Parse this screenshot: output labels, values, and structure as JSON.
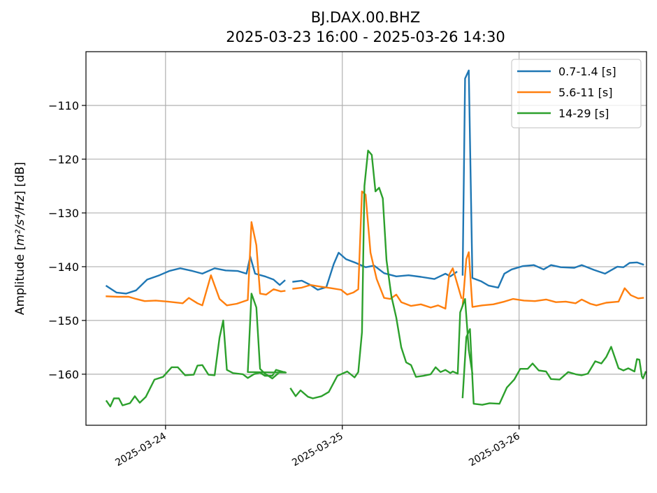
{
  "chart_data": {
    "type": "line",
    "title": "BJ.DAX.00.BHZ",
    "subtitle": "2025-03-23 16:00 - 2025-03-26 14:30",
    "ylabel_prefix": "Amplitude [",
    "ylabel_math": "m²/s⁴/Hz",
    "ylabel_suffix": "] [dB]",
    "xlabel": "",
    "xlim": [
      "2025-03-23 13:12",
      "2025-03-26 17:18"
    ],
    "ylim": [
      -169.5,
      -100
    ],
    "yticks": [
      -110,
      -120,
      -130,
      -140,
      -150,
      -160
    ],
    "yticklabels": [
      "−110",
      "−120",
      "−130",
      "−140",
      "−150",
      "−160"
    ],
    "xticks": [
      "2025-03-24 00:00",
      "2025-03-25 00:00",
      "2025-03-26 00:00"
    ],
    "xticklabels": [
      "2025-03-24",
      "2025-03-25",
      "2025-03-26"
    ],
    "grid": true,
    "legend_position": "upper right",
    "series": [
      {
        "name": "0.7-1.4 [s]",
        "color": "#1f77b4",
        "points": [
          [
            "2025-03-23 16:00",
            -143.6
          ],
          [
            "2025-03-23 17:20",
            -144.8
          ],
          [
            "2025-03-23 18:40",
            -145.0
          ],
          [
            "2025-03-23 20:00",
            -144.4
          ],
          [
            "2025-03-23 21:30",
            -142.4
          ],
          [
            "2025-03-23 23:10",
            -141.6
          ],
          [
            "2025-03-24 00:30",
            -140.8
          ],
          [
            "2025-03-24 02:00",
            -140.3
          ],
          [
            "2025-03-24 03:40",
            -140.8
          ],
          [
            "2025-03-24 05:00",
            -141.3
          ],
          [
            "2025-03-24 06:40",
            -140.3
          ],
          [
            "2025-03-24 08:10",
            -140.7
          ],
          [
            "2025-03-24 09:50",
            -140.8
          ],
          [
            "2025-03-24 11:00",
            -141.3
          ],
          [
            "2025-03-24 11:30",
            -138.1
          ],
          [
            "2025-03-24 12:10",
            -141.3
          ],
          [
            "2025-03-24 13:30",
            -141.8
          ],
          [
            "2025-03-24 14:40",
            -142.4
          ],
          [
            "2025-03-24 15:30",
            -143.4
          ],
          [
            "2025-03-24 16:10",
            -142.6
          ],
          null,
          [
            "2025-03-24 17:20",
            -142.8
          ],
          [
            "2025-03-24 18:30",
            -142.6
          ],
          [
            "2025-03-24 19:40",
            -143.4
          ],
          [
            "2025-03-24 20:40",
            -144.3
          ],
          [
            "2025-03-24 21:50",
            -143.8
          ],
          [
            "2025-03-24 22:50",
            -139.5
          ],
          [
            "2025-03-24 23:30",
            -137.4
          ],
          [
            "2025-03-25 00:30",
            -138.6
          ],
          [
            "2025-03-25 01:50",
            -139.3
          ],
          [
            "2025-03-25 03:10",
            -140.1
          ],
          [
            "2025-03-25 04:20",
            -139.8
          ],
          [
            "2025-03-25 05:40",
            -141.2
          ],
          [
            "2025-03-25 07:20",
            -141.8
          ],
          [
            "2025-03-25 09:00",
            -141.6
          ],
          [
            "2025-03-25 10:40",
            -141.9
          ],
          [
            "2025-03-25 12:30",
            -142.3
          ],
          [
            "2025-03-25 14:00",
            -141.3
          ],
          [
            "2025-03-25 14:40",
            -141.8
          ],
          [
            "2025-03-25 15:30",
            -141.0
          ],
          null,
          [
            "2025-03-25 16:20",
            -141.5
          ],
          [
            "2025-03-25 16:40",
            -105.0
          ],
          [
            "2025-03-25 17:10",
            -103.5
          ],
          [
            "2025-03-25 17:40",
            -142.1
          ],
          [
            "2025-03-25 18:50",
            -142.7
          ],
          [
            "2025-03-25 19:50",
            -143.5
          ],
          [
            "2025-03-25 21:10",
            -143.9
          ],
          [
            "2025-03-25 22:00",
            -141.3
          ],
          [
            "2025-03-25 23:00",
            -140.5
          ],
          [
            "2025-03-26 00:30",
            -139.9
          ],
          [
            "2025-03-26 02:00",
            -139.7
          ],
          [
            "2025-03-26 03:20",
            -140.5
          ],
          [
            "2025-03-26 04:20",
            -139.7
          ],
          [
            "2025-03-26 05:40",
            -140.1
          ],
          [
            "2025-03-26 07:30",
            -140.2
          ],
          [
            "2025-03-26 08:30",
            -139.7
          ],
          [
            "2025-03-26 10:10",
            -140.6
          ],
          [
            "2025-03-26 11:40",
            -141.3
          ],
          [
            "2025-03-26 13:20",
            -140.0
          ],
          [
            "2025-03-26 14:10",
            -140.1
          ],
          [
            "2025-03-26 15:00",
            -139.3
          ],
          [
            "2025-03-26 16:00",
            -139.2
          ],
          [
            "2025-03-26 16:50",
            -139.6
          ]
        ]
      },
      {
        "name": "5.6-11 [s]",
        "color": "#ff7f0e",
        "points": [
          [
            "2025-03-23 16:00",
            -145.5
          ],
          [
            "2025-03-23 17:30",
            -145.6
          ],
          [
            "2025-03-23 19:00",
            -145.6
          ],
          [
            "2025-03-23 20:00",
            -146.0
          ],
          [
            "2025-03-23 21:10",
            -146.4
          ],
          [
            "2025-03-23 22:40",
            -146.3
          ],
          [
            "2025-03-24 00:20",
            -146.5
          ],
          [
            "2025-03-24 02:20",
            -146.8
          ],
          [
            "2025-03-24 03:10",
            -145.8
          ],
          [
            "2025-03-24 04:20",
            -146.8
          ],
          [
            "2025-03-24 05:00",
            -147.2
          ],
          [
            "2025-03-24 06:10",
            -141.6
          ],
          [
            "2025-03-24 07:20",
            -146.0
          ],
          [
            "2025-03-24 08:20",
            -147.2
          ],
          [
            "2025-03-24 09:40",
            -146.9
          ],
          [
            "2025-03-24 11:10",
            -146.2
          ],
          [
            "2025-03-24 11:40",
            -131.7
          ],
          [
            "2025-03-24 12:20",
            -136.0
          ],
          [
            "2025-03-24 12:50",
            -145.0
          ],
          [
            "2025-03-24 13:40",
            -145.2
          ],
          [
            "2025-03-24 14:40",
            -144.2
          ],
          [
            "2025-03-24 15:40",
            -144.6
          ],
          [
            "2025-03-24 16:10",
            -144.5
          ],
          null,
          [
            "2025-03-24 17:20",
            -144.1
          ],
          [
            "2025-03-24 18:30",
            -143.9
          ],
          [
            "2025-03-24 19:40",
            -143.4
          ],
          [
            "2025-03-24 21:00",
            -143.7
          ],
          [
            "2025-03-24 22:30",
            -144.0
          ],
          [
            "2025-03-24 23:50",
            -144.3
          ],
          [
            "2025-03-25 00:40",
            -145.2
          ],
          [
            "2025-03-25 01:30",
            -144.8
          ],
          [
            "2025-03-25 02:10",
            -144.2
          ],
          [
            "2025-03-25 02:40",
            -126.0
          ],
          [
            "2025-03-25 03:10",
            -126.6
          ],
          [
            "2025-03-25 03:50",
            -137.4
          ],
          [
            "2025-03-25 04:40",
            -142.3
          ],
          [
            "2025-03-25 05:40",
            -145.8
          ],
          [
            "2025-03-25 06:30",
            -146.0
          ],
          [
            "2025-03-25 07:20",
            -145.2
          ],
          [
            "2025-03-25 08:00",
            -146.6
          ],
          [
            "2025-03-25 09:20",
            -147.3
          ],
          [
            "2025-03-25 10:40",
            -147.0
          ],
          [
            "2025-03-25 12:00",
            -147.6
          ],
          [
            "2025-03-25 13:00",
            -147.2
          ],
          [
            "2025-03-25 14:00",
            -147.8
          ],
          [
            "2025-03-25 14:30",
            -141.5
          ],
          [
            "2025-03-25 15:00",
            -140.3
          ],
          [
            "2025-03-25 16:10",
            -145.8
          ],
          null,
          [
            "2025-03-25 16:20",
            -147.3
          ],
          [
            "2025-03-25 16:50",
            -138.6
          ],
          [
            "2025-03-25 17:10",
            -137.3
          ],
          [
            "2025-03-25 17:40",
            -147.5
          ],
          [
            "2025-03-25 19:00",
            -147.2
          ],
          [
            "2025-03-25 20:30",
            -147.0
          ],
          [
            "2025-03-25 22:00",
            -146.5
          ],
          [
            "2025-03-25 23:10",
            -146.0
          ],
          [
            "2025-03-26 00:40",
            -146.3
          ],
          [
            "2025-03-26 02:10",
            -146.4
          ],
          [
            "2025-03-26 03:40",
            -146.1
          ],
          [
            "2025-03-26 05:00",
            -146.6
          ],
          [
            "2025-03-26 06:20",
            -146.5
          ],
          [
            "2025-03-26 07:40",
            -146.8
          ],
          [
            "2025-03-26 08:30",
            -146.1
          ],
          [
            "2025-03-26 09:40",
            -146.9
          ],
          [
            "2025-03-26 10:30",
            -147.2
          ],
          [
            "2025-03-26 11:50",
            -146.7
          ],
          [
            "2025-03-26 13:30",
            -146.5
          ],
          [
            "2025-03-26 14:20",
            -144.0
          ],
          [
            "2025-03-26 15:10",
            -145.3
          ],
          [
            "2025-03-26 16:10",
            -145.9
          ],
          [
            "2025-03-26 16:50",
            -145.8
          ]
        ]
      },
      {
        "name": "14-29 [s]",
        "color": "#2ca02c",
        "points": [
          [
            "2025-03-23 16:00",
            -165.0
          ],
          [
            "2025-03-23 16:30",
            -166.0
          ],
          [
            "2025-03-23 17:00",
            -164.5
          ],
          [
            "2025-03-23 17:40",
            -164.5
          ],
          [
            "2025-03-23 18:10",
            -165.8
          ],
          [
            "2025-03-23 19:10",
            -165.4
          ],
          [
            "2025-03-23 19:50",
            -164.1
          ],
          [
            "2025-03-23 20:30",
            -165.3
          ],
          [
            "2025-03-23 21:20",
            -164.2
          ],
          [
            "2025-03-23 22:30",
            -161.0
          ],
          [
            "2025-03-23 23:40",
            -160.5
          ],
          [
            "2025-03-24 00:50",
            -158.7
          ],
          [
            "2025-03-24 01:40",
            -158.7
          ],
          [
            "2025-03-24 02:40",
            -160.2
          ],
          [
            "2025-03-24 03:50",
            -160.1
          ],
          [
            "2025-03-24 04:20",
            -158.4
          ],
          [
            "2025-03-24 05:00",
            -158.3
          ],
          [
            "2025-03-24 05:50",
            -160.1
          ],
          [
            "2025-03-24 06:40",
            -160.2
          ],
          [
            "2025-03-24 07:20",
            -153.2
          ],
          [
            "2025-03-24 07:50",
            -150.0
          ],
          [
            "2025-03-24 08:20",
            -159.2
          ],
          [
            "2025-03-24 09:10",
            -159.8
          ],
          [
            "2025-03-24 10:30",
            -160.0
          ],
          [
            "2025-03-24 11:10",
            -160.7
          ],
          [
            "2025-03-24 12:00",
            -160.0
          ],
          [
            "2025-03-24 12:50",
            -159.7
          ],
          [
            "2025-03-24 13:30",
            -160.3
          ],
          [
            "2025-03-24 14:30",
            -160.3
          ],
          [
            "2025-03-24 15:00",
            -159.2
          ],
          [
            "2025-03-24 16:20",
            -159.7
          ],
          [
            "2025-03-24 11:10",
            -159.6
          ],
          [
            "2025-03-24 11:40",
            -145.0
          ],
          [
            "2025-03-24 12:20",
            -147.6
          ],
          [
            "2025-03-24 12:50",
            -159.0
          ],
          [
            "2025-03-24 13:30",
            -159.9
          ],
          [
            "2025-03-24 14:30",
            -160.8
          ],
          [
            "2025-03-24 15:30",
            -159.6
          ],
          [
            "2025-03-24 16:10",
            -159.6
          ],
          null,
          [
            "2025-03-24 17:00",
            -162.7
          ],
          [
            "2025-03-24 17:40",
            -164.1
          ],
          [
            "2025-03-24 18:20",
            -163.0
          ],
          [
            "2025-03-24 19:20",
            -164.2
          ],
          [
            "2025-03-24 20:00",
            -164.5
          ],
          [
            "2025-03-24 21:10",
            -164.1
          ],
          [
            "2025-03-24 22:10",
            -163.3
          ],
          [
            "2025-03-24 23:20",
            -160.3
          ],
          [
            "2025-03-25 00:40",
            -159.5
          ],
          [
            "2025-03-25 01:40",
            -160.6
          ],
          [
            "2025-03-25 02:10",
            -159.6
          ],
          [
            "2025-03-25 02:40",
            -152.2
          ],
          [
            "2025-03-25 03:00",
            -125.0
          ],
          [
            "2025-03-25 03:30",
            -118.4
          ],
          [
            "2025-03-25 04:00",
            -119.2
          ],
          [
            "2025-03-25 04:30",
            -126.0
          ],
          [
            "2025-03-25 05:00",
            -125.3
          ],
          [
            "2025-03-25 05:30",
            -127.3
          ],
          [
            "2025-03-25 06:00",
            -138.8
          ],
          [
            "2025-03-25 06:40",
            -145.5
          ],
          [
            "2025-03-25 07:20",
            -149.5
          ],
          [
            "2025-03-25 08:00",
            -155.0
          ],
          [
            "2025-03-25 08:40",
            -157.8
          ],
          [
            "2025-03-25 09:20",
            -158.3
          ],
          [
            "2025-03-25 10:00",
            -160.5
          ],
          [
            "2025-03-25 11:00",
            -160.3
          ],
          [
            "2025-03-25 12:00",
            -160.0
          ],
          [
            "2025-03-25 12:40",
            -158.7
          ],
          [
            "2025-03-25 13:20",
            -159.6
          ],
          [
            "2025-03-25 14:00",
            -159.2
          ],
          [
            "2025-03-25 14:40",
            -159.8
          ],
          [
            "2025-03-25 15:00",
            -159.5
          ],
          [
            "2025-03-25 15:40",
            -159.9
          ],
          [
            "2025-03-25 16:00",
            -148.5
          ],
          [
            "2025-03-25 16:40",
            -146.0
          ],
          [
            "2025-03-25 17:10",
            -155.5
          ],
          [
            "2025-03-25 17:40",
            -159.9
          ],
          null,
          [
            "2025-03-25 16:20",
            -164.3
          ],
          [
            "2025-03-25 16:50",
            -153.1
          ],
          [
            "2025-03-25 17:20",
            -151.6
          ],
          [
            "2025-03-25 17:50",
            -165.5
          ],
          [
            "2025-03-25 19:00",
            -165.7
          ],
          [
            "2025-03-25 20:00",
            -165.4
          ],
          [
            "2025-03-25 21:20",
            -165.5
          ],
          [
            "2025-03-25 22:20",
            -162.5
          ],
          [
            "2025-03-25 23:20",
            -161.0
          ],
          [
            "2025-03-26 00:10",
            -159.0
          ],
          [
            "2025-03-26 01:10",
            -159.0
          ],
          [
            "2025-03-26 01:50",
            -158.0
          ],
          [
            "2025-03-26 02:40",
            -159.3
          ],
          [
            "2025-03-26 03:40",
            -159.5
          ],
          [
            "2025-03-26 04:20",
            -160.9
          ],
          [
            "2025-03-26 05:30",
            -161.0
          ],
          [
            "2025-03-26 06:40",
            -159.6
          ],
          [
            "2025-03-26 07:40",
            -160.0
          ],
          [
            "2025-03-26 08:30",
            -160.2
          ],
          [
            "2025-03-26 09:20",
            -159.9
          ],
          [
            "2025-03-26 10:20",
            -157.6
          ],
          [
            "2025-03-26 11:10",
            -158.0
          ],
          [
            "2025-03-26 11:50",
            -156.8
          ],
          [
            "2025-03-26 12:30",
            -154.9
          ],
          [
            "2025-03-26 13:30",
            -158.9
          ],
          [
            "2025-03-26 14:10",
            -159.3
          ],
          [
            "2025-03-26 14:50",
            -158.9
          ],
          [
            "2025-03-26 15:40",
            -159.5
          ],
          [
            "2025-03-26 16:00",
            -157.2
          ],
          [
            "2025-03-26 16:20",
            -157.3
          ],
          [
            "2025-03-26 16:40",
            -160.4
          ],
          [
            "2025-03-26 16:50",
            -160.8
          ],
          [
            "2025-03-26 17:10",
            -159.6
          ]
        ]
      }
    ]
  }
}
